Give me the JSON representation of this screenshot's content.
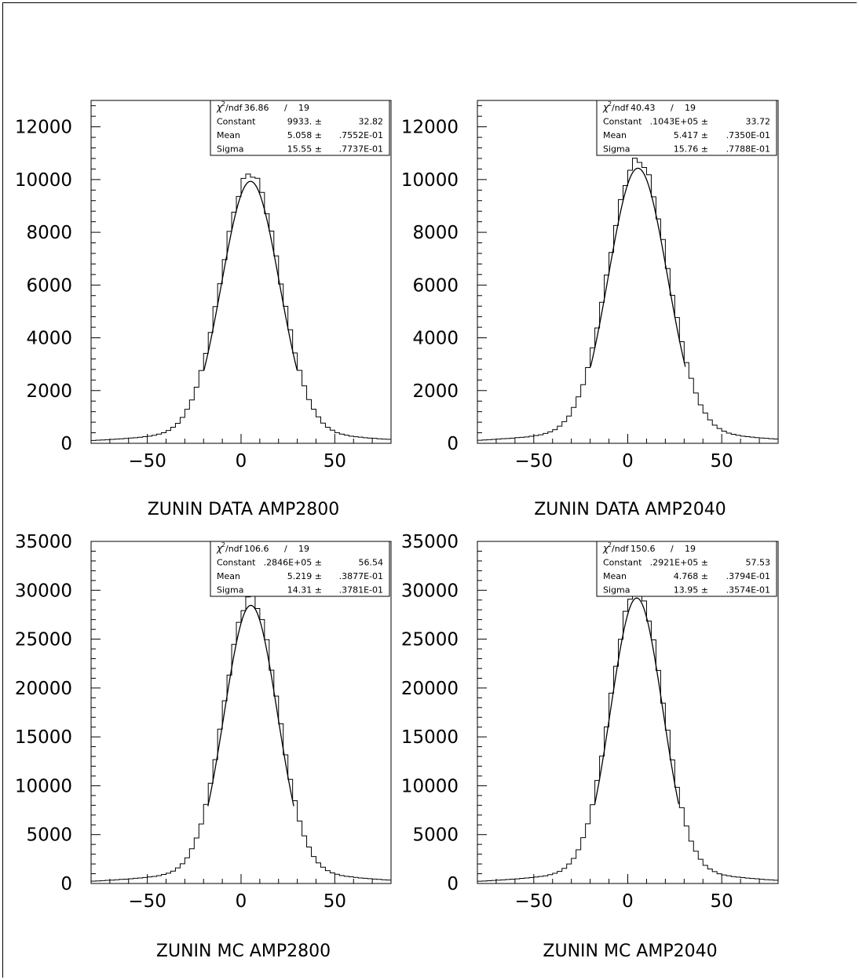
{
  "chart_data": [
    {
      "type": "histogram",
      "title": "ZUNIN DATA AMP2800",
      "xlim": [
        -80,
        80
      ],
      "ylim": [
        0,
        13000
      ],
      "x_ticks": [
        -50,
        0,
        50
      ],
      "x_tick_labels": [
        "−50",
        "0",
        "50"
      ],
      "y_ticks": [
        0,
        2000,
        4000,
        6000,
        8000,
        10000,
        12000
      ],
      "y_tick_labels": [
        "0",
        "2000",
        "4000",
        "6000",
        "8000",
        "10000",
        "12000"
      ],
      "bin_width": 2.5,
      "fit": {
        "function": "gaussian",
        "constant": 9933,
        "mean": 5.058,
        "sigma": 15.55
      },
      "stats": {
        "chi2ndf": "36.86",
        "ndf": "19",
        "rows": [
          {
            "label": "Constant",
            "value": "9933. ±",
            "error": "32.82"
          },
          {
            "label": "Mean",
            "value": "5.058 ±",
            "error": ".7552E-01"
          },
          {
            "label": "Sigma",
            "value": "15.55 ±",
            "error": ".7737E-01"
          }
        ]
      }
    },
    {
      "type": "histogram",
      "title": "ZUNIN DATA AMP2040",
      "xlim": [
        -80,
        80
      ],
      "ylim": [
        0,
        13000
      ],
      "x_ticks": [
        -50,
        0,
        50
      ],
      "x_tick_labels": [
        "−50",
        "0",
        "50"
      ],
      "y_ticks": [
        0,
        2000,
        4000,
        6000,
        8000,
        10000,
        12000
      ],
      "y_tick_labels": [
        "0",
        "2000",
        "4000",
        "6000",
        "8000",
        "10000",
        "12000"
      ],
      "bin_width": 2.5,
      "fit": {
        "function": "gaussian",
        "constant": 10430,
        "mean": 5.417,
        "sigma": 15.76
      },
      "stats": {
        "chi2ndf": "40.43",
        "ndf": "19",
        "rows": [
          {
            "label": "Constant",
            "value": ".1043E+05 ±",
            "error": "33.72"
          },
          {
            "label": "Mean",
            "value": "5.417 ±",
            "error": ".7350E-01"
          },
          {
            "label": "Sigma",
            "value": "15.76 ±",
            "error": ".7788E-01"
          }
        ]
      }
    },
    {
      "type": "histogram",
      "title": "ZUNIN MC AMP2800",
      "xlim": [
        -80,
        80
      ],
      "ylim": [
        0,
        35000
      ],
      "x_ticks": [
        -50,
        0,
        50
      ],
      "x_tick_labels": [
        "−50",
        "0",
        "50"
      ],
      "y_ticks": [
        0,
        5000,
        10000,
        15000,
        20000,
        25000,
        30000,
        35000
      ],
      "y_tick_labels": [
        "0",
        "5000",
        "10000",
        "15000",
        "20000",
        "25000",
        "30000",
        "35000"
      ],
      "bin_width": 2.5,
      "fit": {
        "function": "gaussian",
        "constant": 28460,
        "mean": 5.219,
        "sigma": 14.31
      },
      "stats": {
        "chi2ndf": "106.6",
        "ndf": "19",
        "rows": [
          {
            "label": "Constant",
            "value": ".2846E+05 ±",
            "error": "56.54"
          },
          {
            "label": "Mean",
            "value": "5.219 ±",
            "error": ".3877E-01"
          },
          {
            "label": "Sigma",
            "value": "14.31 ±",
            "error": ".3781E-01"
          }
        ]
      }
    },
    {
      "type": "histogram",
      "title": "ZUNIN MC AMP2040",
      "xlim": [
        -80,
        80
      ],
      "ylim": [
        0,
        35000
      ],
      "x_ticks": [
        -50,
        0,
        50
      ],
      "x_tick_labels": [
        "−50",
        "0",
        "50"
      ],
      "y_ticks": [
        0,
        5000,
        10000,
        15000,
        20000,
        25000,
        30000,
        35000
      ],
      "y_tick_labels": [
        "0",
        "5000",
        "10000",
        "15000",
        "20000",
        "25000",
        "30000",
        "35000"
      ],
      "bin_width": 2.5,
      "fit": {
        "function": "gaussian",
        "constant": 29210,
        "mean": 4.768,
        "sigma": 13.95
      },
      "stats": {
        "chi2ndf": "150.6",
        "ndf": "19",
        "rows": [
          {
            "label": "Constant",
            "value": ".2921E+05 ±",
            "error": "57.53"
          },
          {
            "label": "Mean",
            "value": "4.768 ±",
            "error": ".3794E-01"
          },
          {
            "label": "Sigma",
            "value": "13.95 ±",
            "error": ".3574E-01"
          }
        ]
      }
    }
  ],
  "stats_box_header": {
    "chi_symbol": "χ",
    "superscript": "2",
    "ndf_label": "/ndf",
    "slash": "/"
  }
}
